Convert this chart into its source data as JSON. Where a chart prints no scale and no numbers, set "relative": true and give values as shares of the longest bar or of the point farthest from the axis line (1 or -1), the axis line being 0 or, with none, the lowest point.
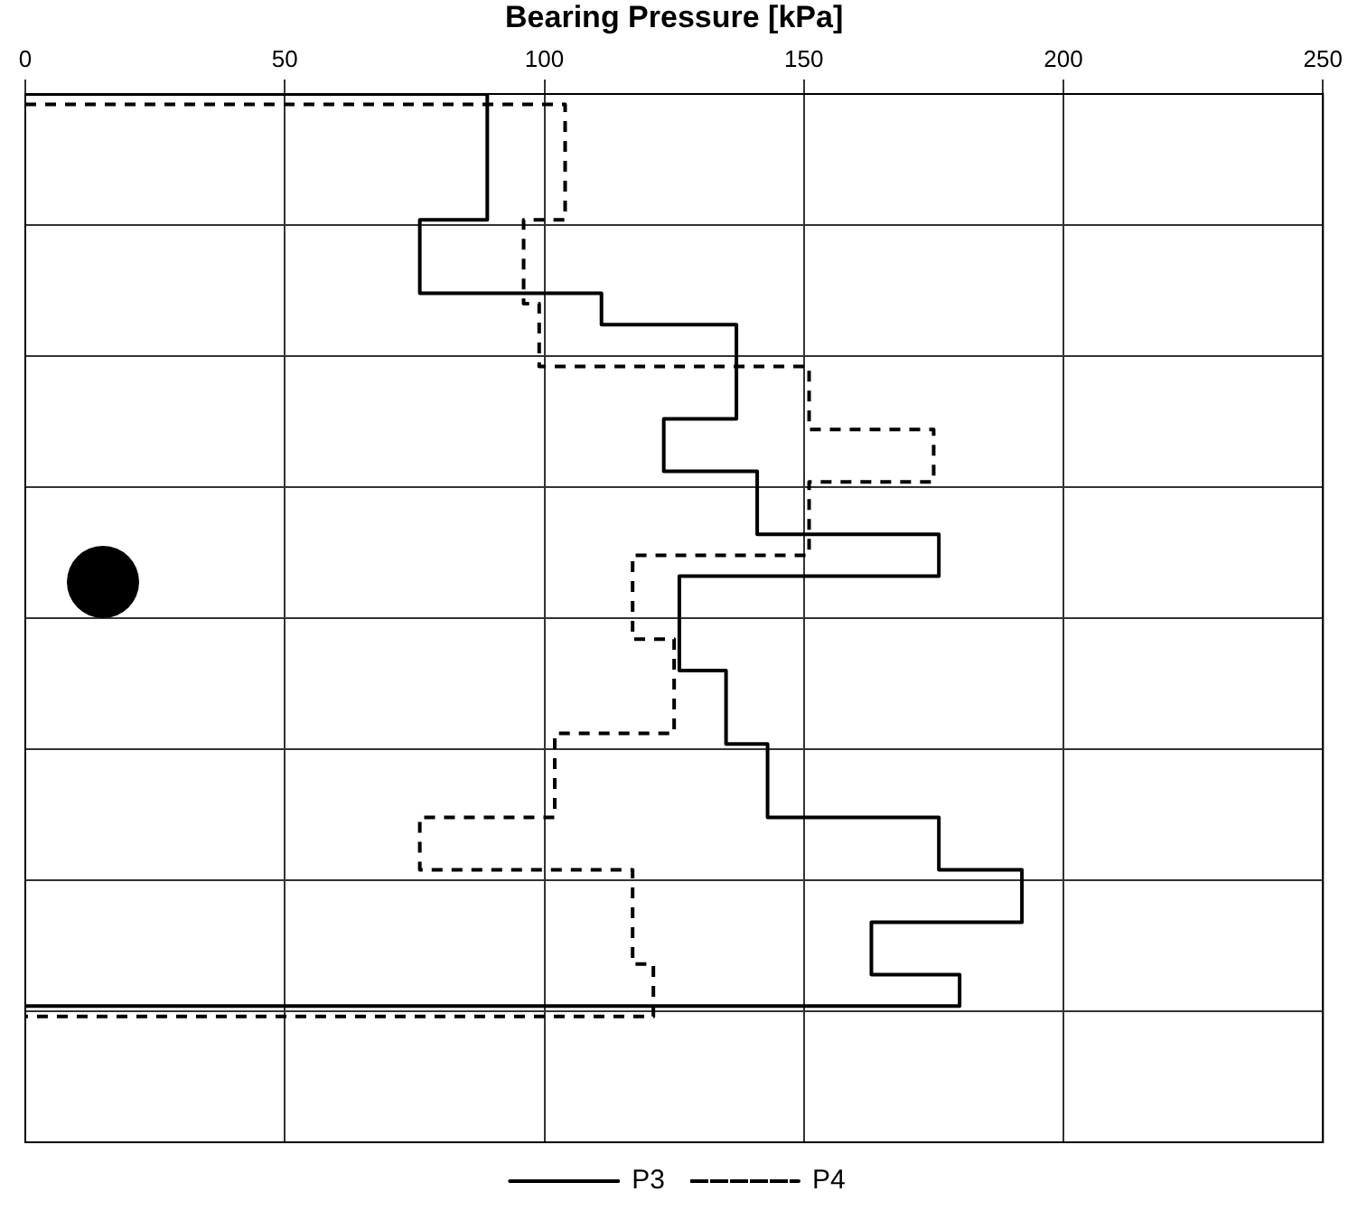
{
  "chart_data": {
    "type": "line",
    "xlabel": "Bearing Pressure [kPa]",
    "xlim": [
      0,
      250
    ],
    "xticks": [
      0,
      50,
      100,
      150,
      200,
      250
    ],
    "relative": true,
    "tick_labels": "x",
    "grid": true,
    "legend": "bottom",
    "marker": "none",
    "series": [
      {
        "name": "P3",
        "color": "#000000",
        "line_style": "solid",
        "x": [
          0,
          89,
          89,
          76,
          76,
          111,
          111,
          137,
          137,
          123,
          123,
          141,
          141,
          176,
          176,
          126,
          126,
          135,
          135,
          143,
          143,
          176,
          176,
          192,
          192,
          163,
          163,
          180,
          180,
          0
        ],
        "values": [
          1,
          1,
          0.88,
          0.88,
          0.81,
          0.81,
          0.78,
          0.78,
          0.69,
          0.69,
          0.64,
          0.64,
          0.58,
          0.58,
          0.54,
          0.54,
          0.45,
          0.45,
          0.38,
          0.38,
          0.31,
          0.31,
          0.26,
          0.26,
          0.21,
          0.21,
          0.16,
          0.16,
          0.13,
          0.13
        ]
      },
      {
        "name": "P4",
        "color": "#000000",
        "line_style": "dashed",
        "x": [
          0,
          104,
          104,
          96,
          96,
          99,
          99,
          151,
          151,
          175,
          175,
          151,
          151,
          117,
          117,
          125,
          125,
          102,
          102,
          76,
          76,
          117,
          117,
          121,
          121,
          0
        ],
        "values": [
          0.99,
          0.99,
          0.88,
          0.88,
          0.8,
          0.8,
          0.74,
          0.74,
          0.68,
          0.68,
          0.63,
          0.63,
          0.56,
          0.56,
          0.48,
          0.48,
          0.39,
          0.39,
          0.31,
          0.31,
          0.26,
          0.26,
          0.17,
          0.17,
          0.12,
          0.12
        ]
      }
    ]
  }
}
